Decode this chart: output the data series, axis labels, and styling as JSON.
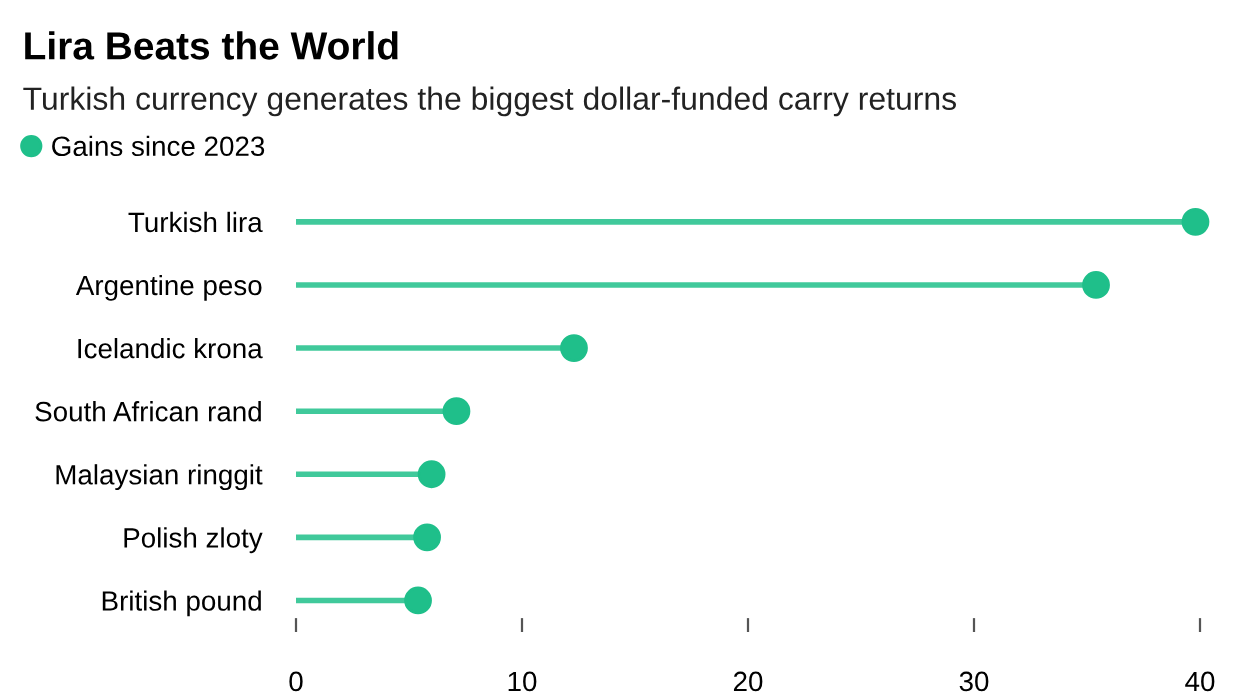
{
  "chart_data": {
    "type": "lollipop",
    "orientation": "horizontal",
    "title": "Lira Beats the World",
    "subtitle": "Turkish currency generates the biggest dollar-funded carry returns",
    "categories": [
      "Turkish lira",
      "Argentine peso",
      "Icelandic krona",
      "South African rand",
      "Malaysian ringgit",
      "Polish zloty",
      "British pound"
    ],
    "series": [
      {
        "name": "Gains since 2023",
        "color": "#1fbf8a",
        "values": [
          39.8,
          35.4,
          12.3,
          7.1,
          6.0,
          5.8,
          5.4
        ]
      }
    ],
    "xlim": [
      0,
      40
    ],
    "xticks": [
      0,
      10,
      20,
      30,
      40
    ],
    "legend": "top left",
    "marker": "circle"
  }
}
